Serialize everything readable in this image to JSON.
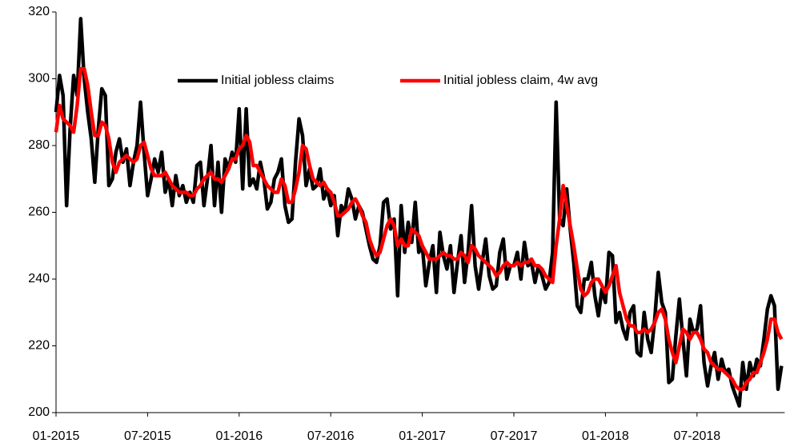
{
  "chart_data": {
    "type": "line",
    "categories": [
      "01-2015",
      null,
      null,
      null,
      null,
      null,
      null,
      null,
      null,
      null,
      null,
      null,
      null,
      null,
      null,
      null,
      null,
      null,
      null,
      null,
      null,
      null,
      null,
      null,
      null,
      null,
      "07-2015",
      null,
      null,
      null,
      null,
      null,
      null,
      null,
      null,
      null,
      null,
      null,
      null,
      null,
      null,
      null,
      null,
      null,
      null,
      null,
      null,
      null,
      null,
      null,
      null,
      null,
      "01-2016",
      null,
      null,
      null,
      null,
      null,
      null,
      null,
      null,
      null,
      null,
      null,
      null,
      null,
      null,
      null,
      null,
      null,
      null,
      null,
      null,
      null,
      null,
      null,
      null,
      null,
      "07-2016",
      null,
      null,
      null,
      null,
      null,
      null,
      null,
      null,
      null,
      null,
      null,
      null,
      null,
      null,
      null,
      null,
      null,
      null,
      null,
      null,
      null,
      null,
      null,
      null,
      null,
      "01-2017",
      null,
      null,
      null,
      null,
      null,
      null,
      null,
      null,
      null,
      null,
      null,
      null,
      null,
      null,
      null,
      null,
      null,
      null,
      null,
      null,
      null,
      null,
      null,
      null,
      null,
      "07-2017",
      null,
      null,
      null,
      null,
      null,
      null,
      null,
      null,
      null,
      null,
      null,
      null,
      null,
      null,
      null,
      null,
      null,
      null,
      null,
      null,
      null,
      null,
      null,
      null,
      null,
      "01-2018",
      null,
      null,
      null,
      null,
      null,
      null,
      null,
      null,
      null,
      null,
      null,
      null,
      null,
      null,
      null,
      null,
      null,
      null,
      null,
      null,
      null,
      null,
      null,
      null,
      null,
      "07-2018",
      null,
      null,
      null,
      null,
      null,
      null,
      null,
      null,
      null,
      null,
      null,
      null,
      null,
      null,
      null,
      null,
      null,
      null,
      null,
      null,
      null,
      null,
      null,
      null
    ],
    "series": [
      {
        "name": "Initial jobless claims",
        "color": "#000000",
        "width": 4.5,
        "values": [
          290,
          301,
          295,
          262,
          285,
          301,
          295,
          318,
          300,
          290,
          282,
          269,
          285,
          297,
          295,
          268,
          270,
          278,
          282,
          275,
          279,
          268,
          275,
          280,
          293,
          278,
          265,
          270,
          276,
          272,
          278,
          266,
          270,
          262,
          271,
          265,
          268,
          263,
          266,
          263,
          274,
          275,
          262,
          270,
          280,
          262,
          275,
          260,
          276,
          273,
          278,
          275,
          291,
          267,
          291,
          268,
          270,
          267,
          275,
          270,
          261,
          263,
          270,
          272,
          276,
          262,
          257,
          258,
          275,
          288,
          283,
          268,
          273,
          267,
          268,
          273,
          264,
          267,
          262,
          265,
          253,
          262,
          260,
          267,
          264,
          258,
          262,
          260,
          255,
          250,
          246,
          245,
          250,
          263,
          264,
          255,
          258,
          235,
          262,
          248,
          257,
          251,
          263,
          248,
          250,
          238,
          245,
          250,
          236,
          254,
          247,
          243,
          250,
          236,
          245,
          253,
          239,
          248,
          262,
          244,
          237,
          245,
          252,
          241,
          237,
          238,
          248,
          252,
          240,
          244,
          244,
          248,
          240,
          251,
          244,
          245,
          239,
          244,
          241,
          237,
          239,
          248,
          293,
          258,
          256,
          267,
          255,
          245,
          232,
          230,
          240,
          240,
          245,
          235,
          229,
          237,
          233,
          248,
          247,
          227,
          230,
          225,
          222,
          230,
          232,
          218,
          217,
          230,
          222,
          218,
          228,
          242,
          233,
          230,
          209,
          210,
          223,
          234,
          222,
          211,
          228,
          224,
          225,
          232,
          215,
          208,
          214,
          218,
          210,
          216,
          212,
          213,
          208,
          205,
          202,
          215,
          207,
          215,
          211,
          216,
          214,
          222,
          231,
          235,
          232,
          207,
          214
        ]
      },
      {
        "name": "Initial jobless claim, 4w avg",
        "color": "#ff0000",
        "width": 4.5,
        "values": [
          284,
          292,
          288,
          287,
          286,
          284,
          292,
          303,
          303,
          298,
          290,
          283,
          283,
          287,
          286,
          282,
          275,
          272,
          275,
          276,
          277,
          276,
          275,
          276,
          280,
          281,
          277,
          273,
          271,
          271,
          271,
          272,
          270,
          268,
          267,
          266,
          266,
          266,
          265,
          265,
          267,
          268,
          270,
          271,
          272,
          270,
          270,
          269,
          271,
          273,
          276,
          276,
          279,
          280,
          283,
          281,
          274,
          274,
          272,
          270,
          268,
          267,
          266,
          266,
          270,
          268,
          263,
          263,
          267,
          272,
          280,
          279,
          274,
          270,
          269,
          268,
          269,
          267,
          266,
          263,
          259,
          259,
          260,
          261,
          263,
          264,
          262,
          259,
          257,
          252,
          249,
          247,
          248,
          252,
          256,
          258,
          256,
          250,
          252,
          250,
          250,
          255,
          254,
          253,
          250,
          248,
          246,
          246,
          246,
          247,
          248,
          247,
          247,
          246,
          246,
          248,
          247,
          245,
          250,
          249,
          247,
          246,
          245,
          244,
          243,
          241,
          242,
          244,
          245,
          244,
          244,
          245,
          244,
          245,
          245,
          246,
          244,
          244,
          243,
          241,
          240,
          239,
          250,
          258,
          268,
          262,
          256,
          250,
          243,
          237,
          235,
          236,
          239,
          240,
          240,
          238,
          236,
          238,
          241,
          244,
          236,
          232,
          228,
          226,
          226,
          224,
          224,
          225,
          224,
          225,
          227,
          230,
          231,
          228,
          222,
          218,
          215,
          220,
          225,
          224,
          222,
          224,
          224,
          222,
          219,
          218,
          215,
          214,
          213,
          213,
          212,
          211,
          210,
          208,
          207,
          207,
          209,
          210,
          212,
          212,
          215,
          218,
          222,
          228,
          228,
          224,
          222
        ]
      }
    ],
    "ylim": [
      200,
      320
    ],
    "yticks": [
      200,
      220,
      240,
      260,
      280,
      300,
      320
    ],
    "grid": false,
    "legend": "top"
  }
}
